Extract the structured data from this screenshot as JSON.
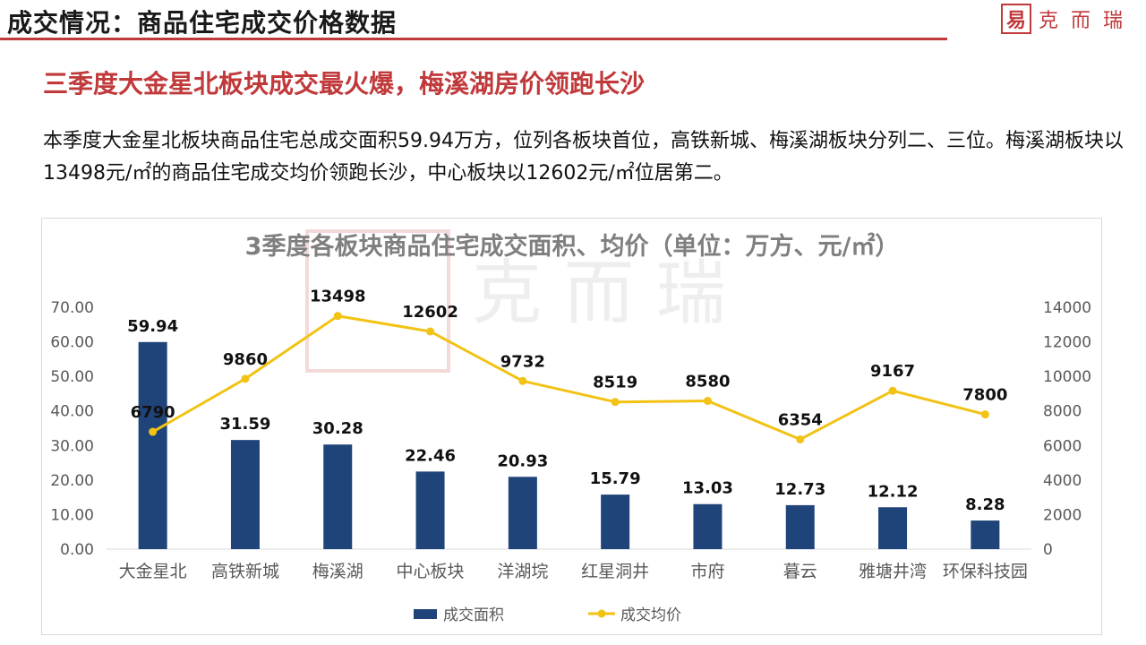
{
  "header": {
    "title": "成交情况：商品住宅成交价格数据",
    "logo_text": "克而瑞",
    "logo_seal": "易"
  },
  "subtitle": "三季度大金星北板块成交最火爆，梅溪湖房价领跑长沙",
  "summary": "本季度大金星北板块商品住宅总成交面积59.94万方，位列各板块首位，高铁新城、梅溪湖板块分列二、三位。梅溪湖板块以13498元/㎡的商品住宅成交均价领跑长沙，中心板块以12602元/㎡位居第二。",
  "colors": {
    "accent": "#c0393b",
    "bar": "#1f4479",
    "line": "#f2c215",
    "axis_text": "#595959",
    "title_gray": "#7f7f7f"
  },
  "chart_data": {
    "type": "bar",
    "title": "3季度各板块商品住宅成交面积、均价（单位：万方、元/㎡）",
    "watermark": "克 而 瑞",
    "categories": [
      "大金星北",
      "高铁新城",
      "梅溪湖",
      "中心板块",
      "洋湖垸",
      "红星洞井",
      "市府",
      "暮云",
      "雅塘井湾",
      "环保科技园"
    ],
    "series": [
      {
        "name": "成交面积",
        "type": "bar",
        "axis": "left",
        "values": [
          59.94,
          31.59,
          30.28,
          22.46,
          20.93,
          15.79,
          13.03,
          12.73,
          12.12,
          8.28
        ],
        "labels": [
          "59.94",
          "31.59",
          "30.28",
          "22.46",
          "20.93",
          "15.79",
          "13.03",
          "12.73",
          "12.12",
          "8.28"
        ]
      },
      {
        "name": "成交均价",
        "type": "line",
        "axis": "right",
        "values": [
          6790,
          9860,
          13498,
          12602,
          9732,
          8519,
          8580,
          6354,
          9167,
          7800
        ],
        "labels": [
          "6790",
          "9860",
          "13498",
          "12602",
          "9732",
          "8519",
          "8580",
          "6354",
          "9167",
          "7800"
        ]
      }
    ],
    "y_left": {
      "min": 0,
      "max": 70,
      "step": 10,
      "tick_labels": [
        "0.00",
        "10.00",
        "20.00",
        "30.00",
        "40.00",
        "50.00",
        "60.00",
        "70.00"
      ]
    },
    "y_right": {
      "min": 0,
      "max": 14000,
      "step": 2000,
      "tick_labels": [
        "0",
        "2000",
        "4000",
        "6000",
        "8000",
        "10000",
        "12000",
        "14000"
      ]
    },
    "grid": false,
    "legend_position": "bottom"
  }
}
